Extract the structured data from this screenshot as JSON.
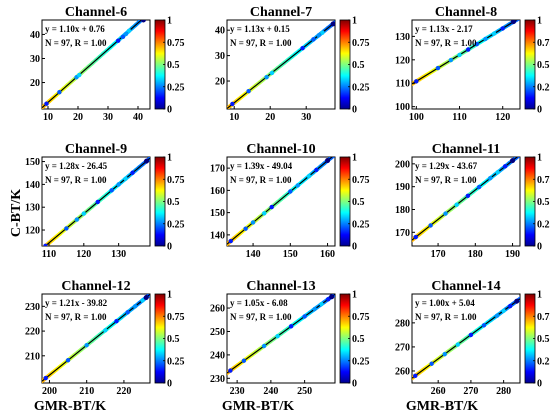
{
  "figure": {
    "ylabel": "C-BT/K",
    "xlabel": "GMR-BT/K",
    "colorbar_ticks": [
      "0",
      "0.25",
      "0.5",
      "0.75",
      "1"
    ]
  },
  "chart_data": [
    {
      "type": "scatter",
      "title": "Channel-6",
      "equation": "y = 1.10x + 0.76",
      "stats": "N = 97, R = 1.00",
      "slope": 1.1,
      "intercept": 0.76,
      "xlim": [
        8,
        44
      ],
      "ylim": [
        9,
        46
      ],
      "xticks": [
        10,
        20,
        30,
        40
      ],
      "yticks": [
        20,
        30,
        40
      ],
      "points": [
        [
          9.5,
          11.2
        ],
        [
          13.8,
          16
        ],
        [
          19.5,
          22.2
        ],
        [
          20.4,
          23.1
        ],
        [
          33.4,
          37.4
        ],
        [
          35,
          39
        ],
        [
          36,
          40.2
        ],
        [
          37,
          41.5
        ],
        [
          41.8,
          46
        ]
      ]
    },
    {
      "type": "scatter",
      "title": "Channel-7",
      "equation": "y = 1.13x + 0.15",
      "stats": "N = 97, R = 1.00",
      "slope": 1.13,
      "intercept": 0.15,
      "xlim": [
        8,
        38
      ],
      "ylim": [
        9,
        44
      ],
      "xticks": [
        10,
        20,
        30
      ],
      "yticks": [
        20,
        30,
        40
      ],
      "points": [
        [
          9.5,
          11
        ],
        [
          14,
          16
        ],
        [
          19,
          21.5
        ],
        [
          20.5,
          23.2
        ],
        [
          29,
          32.9
        ],
        [
          32,
          36.4
        ],
        [
          33.5,
          38
        ],
        [
          34.5,
          39
        ],
        [
          37.5,
          42.5
        ]
      ]
    },
    {
      "type": "scatter",
      "title": "Channel-8",
      "equation": "y = 1.13x - 2.17",
      "stats": "N = 97, R = 1.00",
      "slope": 1.13,
      "intercept": -2.17,
      "xlim": [
        99,
        124
      ],
      "ylim": [
        99,
        137
      ],
      "xticks": [
        100,
        110,
        120
      ],
      "yticks": [
        100,
        110,
        120,
        130
      ],
      "points": [
        [
          100,
          110.8
        ],
        [
          105,
          116.5
        ],
        [
          108,
          119.9
        ],
        [
          110,
          122.1
        ],
        [
          112,
          124.4
        ],
        [
          114,
          126.7
        ],
        [
          116,
          128.9
        ],
        [
          118,
          131.2
        ],
        [
          120,
          133.4
        ],
        [
          122.5,
          136.3
        ]
      ]
    },
    {
      "type": "scatter",
      "title": "Channel-9",
      "equation": "y = 1.28x - 26.45",
      "stats": "N = 97, R = 1.00",
      "slope": 1.28,
      "intercept": -26.45,
      "xlim": [
        108,
        139
      ],
      "ylim": [
        113,
        152
      ],
      "xticks": [
        110,
        120,
        130
      ],
      "yticks": [
        120,
        130,
        140,
        150
      ],
      "points": [
        [
          109,
          113.1
        ],
        [
          115,
          120.7
        ],
        [
          118,
          124.6
        ],
        [
          120,
          127.2
        ],
        [
          124,
          132.3
        ],
        [
          128,
          137.4
        ],
        [
          130,
          140
        ],
        [
          132,
          142.5
        ],
        [
          134,
          145.1
        ],
        [
          138,
          150.2
        ]
      ]
    },
    {
      "type": "scatter",
      "title": "Channel-10",
      "equation": "y = 1.39x - 49.04",
      "stats": "N = 97, R = 1.00",
      "slope": 1.39,
      "intercept": -49.04,
      "xlim": [
        133,
        162
      ],
      "ylim": [
        135,
        175
      ],
      "xticks": [
        140,
        150,
        160
      ],
      "yticks": [
        140,
        150,
        160,
        170
      ],
      "points": [
        [
          134,
          137.2
        ],
        [
          138,
          142.8
        ],
        [
          140,
          145.6
        ],
        [
          143,
          149.7
        ],
        [
          145,
          152.5
        ],
        [
          150,
          159.5
        ],
        [
          152,
          162.2
        ],
        [
          155,
          166.4
        ],
        [
          157,
          169.2
        ],
        [
          160,
          173.4
        ]
      ]
    },
    {
      "type": "scatter",
      "title": "Channel-11",
      "equation": "y = 1.29x - 43.67",
      "stats": "N = 97, R = 1.00",
      "slope": 1.29,
      "intercept": -43.67,
      "xlim": [
        163,
        192
      ],
      "ylim": [
        164,
        203
      ],
      "xticks": [
        170,
        180,
        190
      ],
      "yticks": [
        170,
        180,
        190,
        200
      ],
      "points": [
        [
          164,
          167.9
        ],
        [
          168,
          173
        ],
        [
          172,
          178.2
        ],
        [
          175,
          182.1
        ],
        [
          178,
          186
        ],
        [
          181,
          189.8
        ],
        [
          184,
          193.7
        ],
        [
          186,
          196.3
        ],
        [
          188,
          198.9
        ],
        [
          190,
          201.4
        ]
      ]
    },
    {
      "type": "scatter",
      "title": "Channel-12",
      "equation": "y = 1.21x - 39.82",
      "stats": "N = 97, R = 1.00",
      "slope": 1.21,
      "intercept": -39.82,
      "xlim": [
        198,
        227
      ],
      "ylim": [
        199,
        235
      ],
      "xticks": [
        200,
        210,
        220
      ],
      "yticks": [
        210,
        220,
        230
      ],
      "points": [
        [
          199,
          201
        ],
        [
          205,
          208.2
        ],
        [
          210,
          214.3
        ],
        [
          215,
          220.3
        ],
        [
          218,
          224
        ],
        [
          221,
          227.6
        ],
        [
          223,
          230
        ],
        [
          225,
          232.4
        ],
        [
          226,
          233.6
        ]
      ]
    },
    {
      "type": "scatter",
      "title": "Channel-13",
      "equation": "y = 1.05x - 6.08",
      "stats": "N = 97, R = 1.00",
      "slope": 1.05,
      "intercept": -6.08,
      "xlim": [
        227,
        259
      ],
      "ylim": [
        228,
        266
      ],
      "xticks": [
        230,
        240,
        250
      ],
      "yticks": [
        230,
        240,
        250,
        260
      ],
      "points": [
        [
          228,
          233.3
        ],
        [
          232,
          237.5
        ],
        [
          238,
          243.8
        ],
        [
          242,
          248
        ],
        [
          246,
          252.2
        ],
        [
          250,
          256.4
        ],
        [
          253,
          259.6
        ],
        [
          255,
          261.7
        ],
        [
          257,
          263.8
        ],
        [
          258,
          264.8
        ]
      ]
    },
    {
      "type": "scatter",
      "title": "Channel-14",
      "equation": "y = 1.00x + 5.04",
      "stats": "N = 97, R = 1.00",
      "slope": 1.0,
      "intercept": 5.04,
      "xlim": [
        252,
        285
      ],
      "ylim": [
        255,
        292
      ],
      "xticks": [
        260,
        270,
        280
      ],
      "yticks": [
        260,
        270,
        280
      ],
      "points": [
        [
          253,
          258
        ],
        [
          258,
          263
        ],
        [
          262,
          267
        ],
        [
          266,
          271
        ],
        [
          270,
          275
        ],
        [
          274,
          279
        ],
        [
          278,
          283
        ],
        [
          280,
          285
        ],
        [
          282,
          287
        ],
        [
          284,
          289
        ]
      ]
    }
  ]
}
